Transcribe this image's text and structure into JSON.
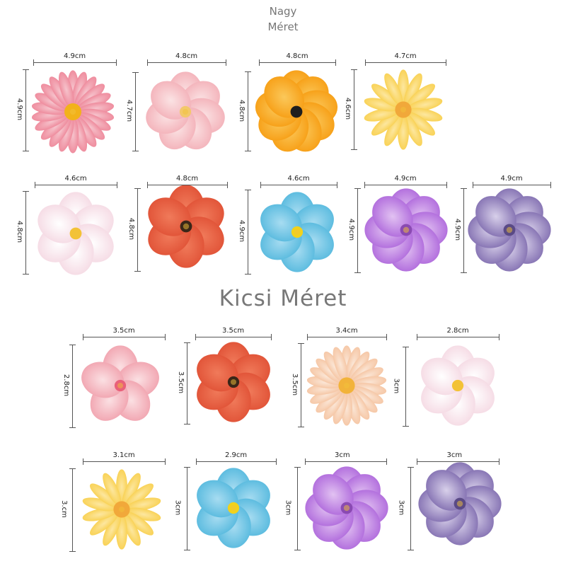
{
  "header": {
    "large_line1": "Nagy",
    "large_line2": "Méret",
    "small": "Kicsi Méret"
  },
  "large": [
    {
      "w": "4.9cm",
      "h": "4.9cm",
      "name": "pink-daisy",
      "petal": "#ef8fa0",
      "petal2": "#f6c3cc",
      "center": "#f2b21a",
      "petals": 22,
      "shape": "daisy"
    },
    {
      "w": "4.8cm",
      "h": "4.7cm",
      "name": "pink-peony",
      "petal": "#f4b6bd",
      "petal2": "#fbe3e4",
      "center": "#f3c86a",
      "petals": 7,
      "shape": "round"
    },
    {
      "w": "4.8cm",
      "h": "4.8cm",
      "name": "orange-flower",
      "petal": "#f7a21b",
      "petal2": "#fbc85a",
      "center": "#1e1e1e",
      "petals": 9,
      "shape": "round"
    },
    {
      "w": "4.7cm",
      "h": "4.6cm",
      "name": "yellow-daisy",
      "petal": "#f9d35a",
      "petal2": "#fde7a0",
      "center": "#f1a83a",
      "petals": 14,
      "shape": "daisy"
    },
    {
      "w": "4.6cm",
      "h": "4.8cm",
      "name": "white-cosmos",
      "petal": "#f6dde6",
      "petal2": "#ffffff",
      "center": "#f3c236",
      "petals": 6,
      "shape": "round"
    },
    {
      "w": "4.8cm",
      "h": "4.8cm",
      "name": "red-flower",
      "petal": "#e2563a",
      "petal2": "#f07a5a",
      "center": "#3a2618",
      "petals": 6,
      "shape": "round"
    },
    {
      "w": "4.6cm",
      "h": "4.9cm",
      "name": "blue-anemone",
      "petal": "#5fbde0",
      "petal2": "#a7dcf1",
      "center": "#f2d21b",
      "petals": 6,
      "shape": "round"
    },
    {
      "w": "4.9cm",
      "h": "4.9cm",
      "name": "purple-flower",
      "petal": "#b472de",
      "petal2": "#e2c2f2",
      "center": "#8a4ab2",
      "petals": 8,
      "shape": "round"
    },
    {
      "w": "4.9cm",
      "h": "4.9cm",
      "name": "lavender-flower",
      "petal": "#8a78b6",
      "petal2": "#d8d0ea",
      "center": "#5a4a86",
      "petals": 8,
      "shape": "round"
    }
  ],
  "small": [
    {
      "w": "3.5cm",
      "h": "2.8cm",
      "name": "pink-hibiscus",
      "petal": "#f2a9b4",
      "petal2": "#fbe0e3",
      "center": "#e9607a",
      "petals": 5,
      "shape": "round"
    },
    {
      "w": "3.5cm",
      "h": "3.5cm",
      "name": "red-flower-small",
      "petal": "#e2563a",
      "petal2": "#f07a5a",
      "center": "#3a2618",
      "petals": 6,
      "shape": "round"
    },
    {
      "w": "3.4cm",
      "h": "3.5cm",
      "name": "peach-daisy",
      "petal": "#f6c9a9",
      "petal2": "#fbe6d6",
      "center": "#f2b33a",
      "petals": 22,
      "shape": "daisy"
    },
    {
      "w": "2.8cm",
      "h": "3cm",
      "name": "white-cosmos-small",
      "petal": "#f6dde6",
      "petal2": "#ffffff",
      "center": "#f3c236",
      "petals": 6,
      "shape": "round"
    },
    {
      "w": "3.1cm",
      "h": "3.cm",
      "name": "yellow-daisy-small",
      "petal": "#f9d35a",
      "petal2": "#fde7a0",
      "center": "#f1a83a",
      "petals": 14,
      "shape": "daisy"
    },
    {
      "w": "2.9cm",
      "h": "3cm",
      "name": "blue-anemone-small",
      "petal": "#5fbde0",
      "petal2": "#a7dcf1",
      "center": "#f2d21b",
      "petals": 6,
      "shape": "round"
    },
    {
      "w": "3cm",
      "h": "3cm",
      "name": "purple-flower-small",
      "petal": "#b472de",
      "petal2": "#e2c2f2",
      "center": "#8a4ab2",
      "petals": 8,
      "shape": "round"
    },
    {
      "w": "3cm",
      "h": "3cm",
      "name": "lavender-flower-small",
      "petal": "#8a78b6",
      "petal2": "#d8d0ea",
      "center": "#5a4a86",
      "petals": 8,
      "shape": "round"
    }
  ]
}
